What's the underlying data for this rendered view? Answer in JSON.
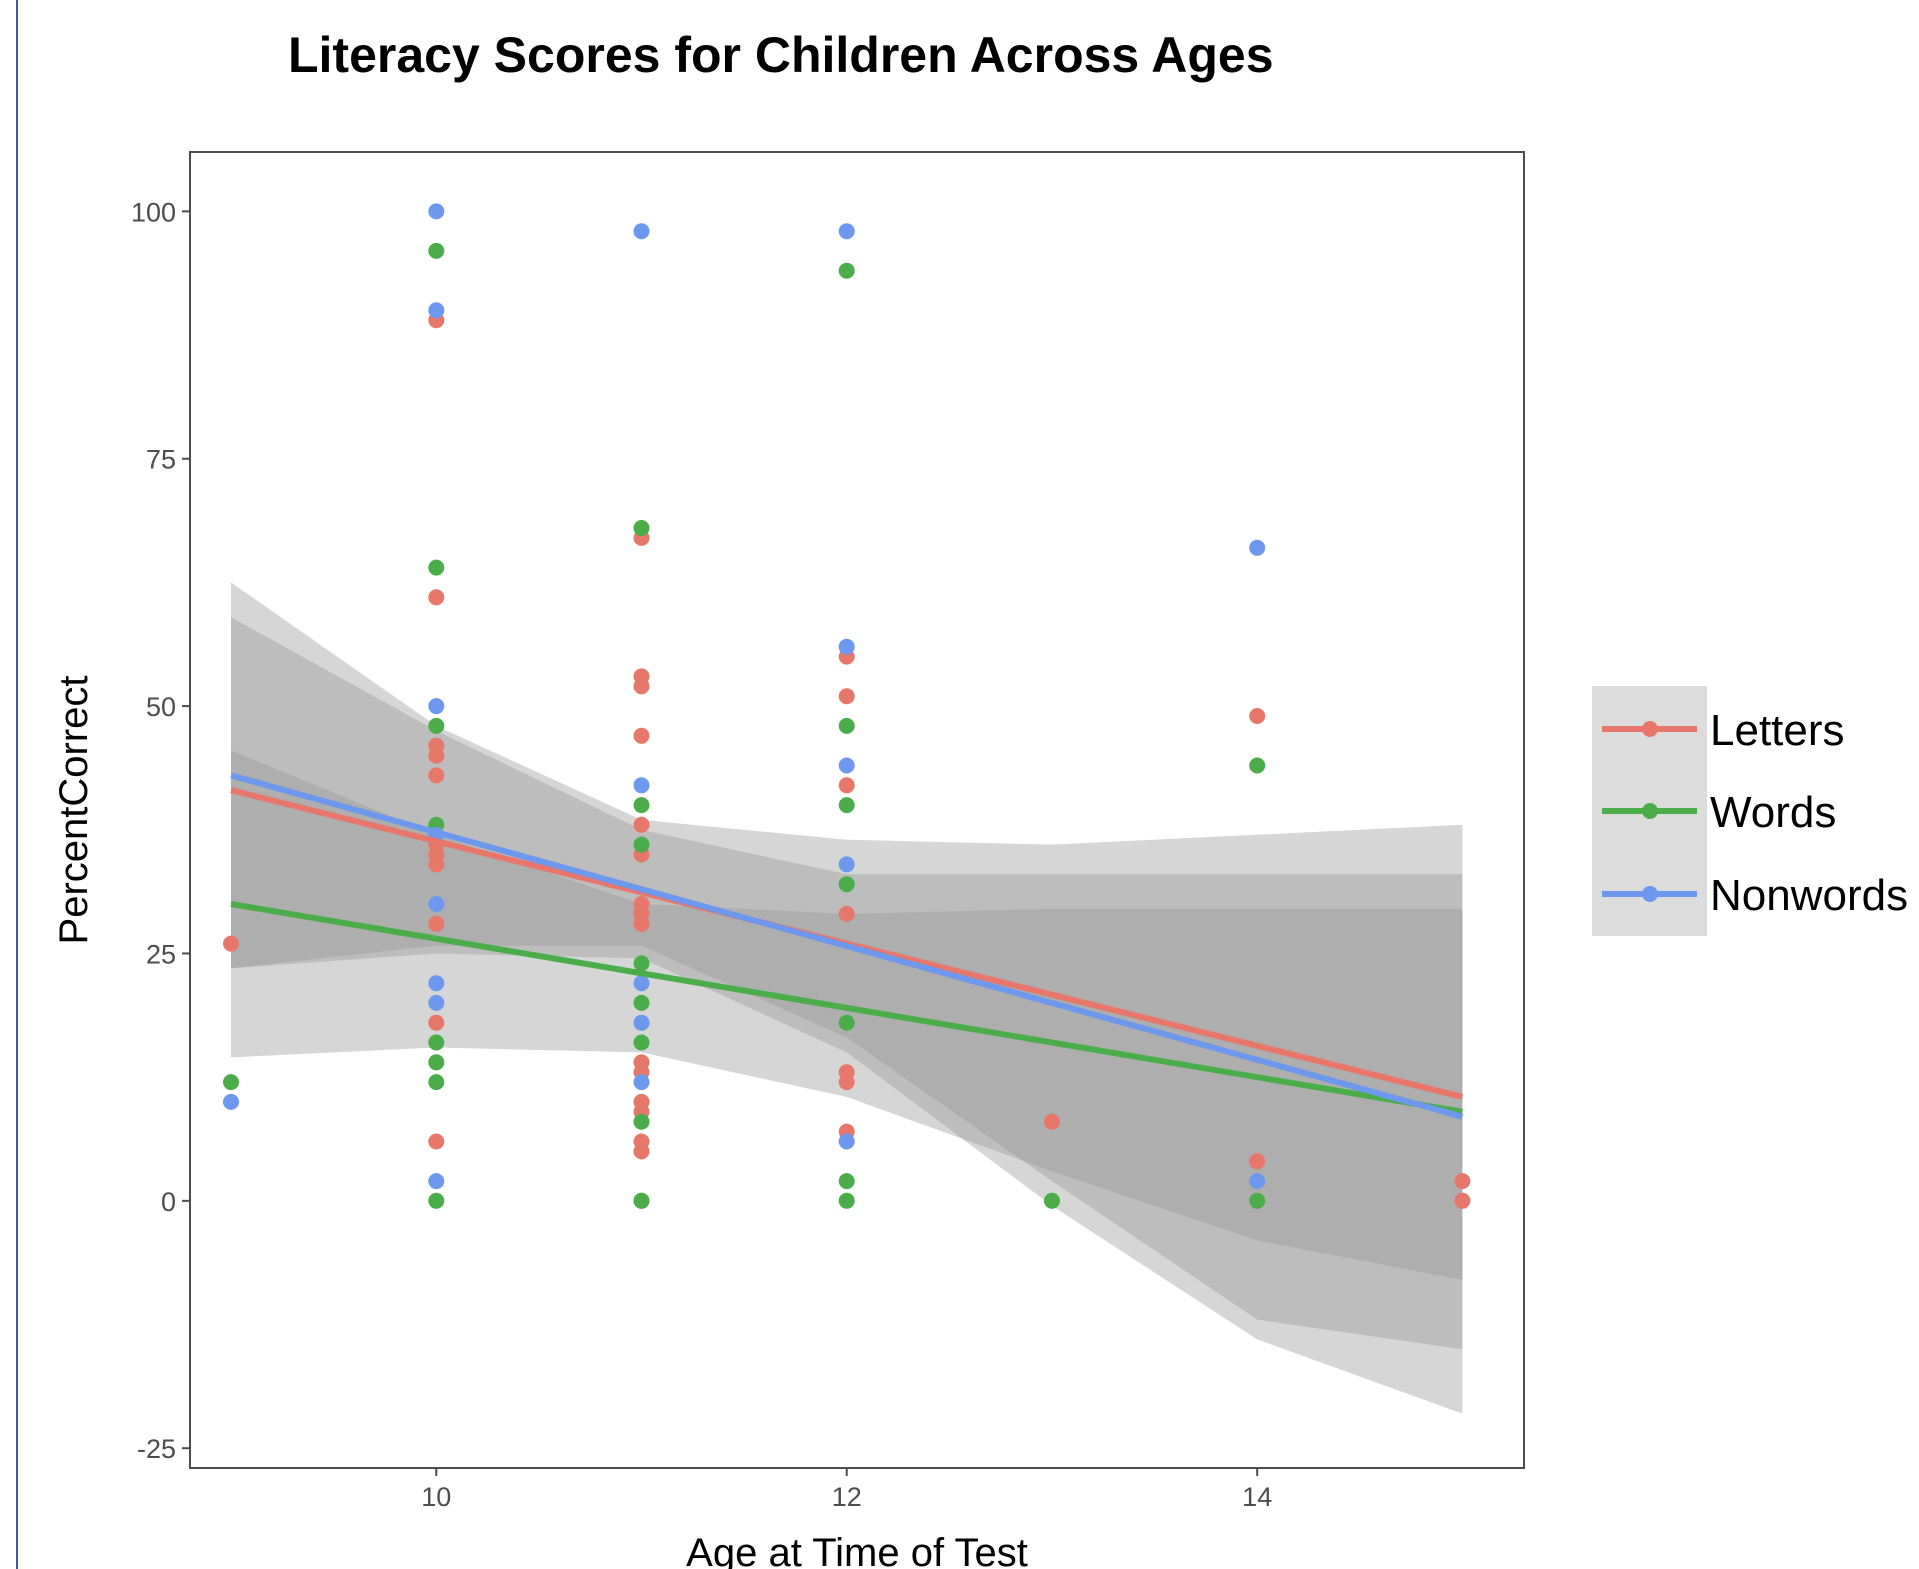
{
  "chart_data": {
    "type": "scatter",
    "title": "Literacy Scores for Children Across Ages",
    "xlabel": "Age at Time of Test",
    "ylabel": "PercentCorrect",
    "xlim": [
      8.8,
      15.3
    ],
    "ylim": [
      -27,
      106
    ],
    "xticks": [
      10,
      12,
      14
    ],
    "yticks": [
      -25,
      0,
      25,
      50,
      75,
      100
    ],
    "x_tick_labels": [
      "10",
      "12",
      "14"
    ],
    "y_tick_labels": [
      "-25",
      "0",
      "25",
      "50",
      "75",
      "100"
    ],
    "grid": false,
    "legend_position": "right",
    "series": [
      {
        "name": "Letters",
        "color": "#e7776a",
        "points": [
          [
            9,
            26
          ],
          [
            10,
            89
          ],
          [
            10,
            61
          ],
          [
            10,
            46
          ],
          [
            10,
            45
          ],
          [
            10,
            43
          ],
          [
            10,
            36
          ],
          [
            10,
            35
          ],
          [
            10,
            34
          ],
          [
            10,
            28
          ],
          [
            10,
            18
          ],
          [
            10,
            6
          ],
          [
            11,
            67
          ],
          [
            11,
            53
          ],
          [
            11,
            52
          ],
          [
            11,
            47
          ],
          [
            11,
            38
          ],
          [
            11,
            35
          ],
          [
            11,
            30
          ],
          [
            11,
            29
          ],
          [
            11,
            28
          ],
          [
            11,
            14
          ],
          [
            11,
            13
          ],
          [
            11,
            10
          ],
          [
            11,
            9
          ],
          [
            11,
            6
          ],
          [
            11,
            5
          ],
          [
            11,
            0
          ],
          [
            12,
            55
          ],
          [
            12,
            51
          ],
          [
            12,
            42
          ],
          [
            12,
            29
          ],
          [
            12,
            13
          ],
          [
            12,
            12
          ],
          [
            12,
            7
          ],
          [
            13,
            8
          ],
          [
            14,
            49
          ],
          [
            14,
            4
          ],
          [
            15,
            2
          ],
          [
            15,
            0
          ]
        ],
        "fit": {
          "x": [
            9,
            15
          ],
          "y": [
            41.5,
            10.5
          ]
        },
        "band": {
          "x": [
            9,
            10,
            11,
            12,
            13,
            14,
            15
          ],
          "lower": [
            23.5,
            25.8,
            25.8,
            16.5,
            2.0,
            -12.0,
            -15.0
          ],
          "upper": [
            59.0,
            47.5,
            37.5,
            33.0,
            33.0,
            33.0,
            33.0
          ]
        }
      },
      {
        "name": "Words",
        "color": "#4aad4a",
        "points": [
          [
            9,
            12
          ],
          [
            10,
            96
          ],
          [
            10,
            64
          ],
          [
            10,
            48
          ],
          [
            10,
            38
          ],
          [
            10,
            16
          ],
          [
            10,
            14
          ],
          [
            10,
            12
          ],
          [
            10,
            0
          ],
          [
            11,
            68
          ],
          [
            11,
            40
          ],
          [
            11,
            36
          ],
          [
            11,
            24
          ],
          [
            11,
            20
          ],
          [
            11,
            16
          ],
          [
            11,
            8
          ],
          [
            11,
            0
          ],
          [
            12,
            94
          ],
          [
            12,
            48
          ],
          [
            12,
            40
          ],
          [
            12,
            32
          ],
          [
            12,
            18
          ],
          [
            12,
            2
          ],
          [
            12,
            0
          ],
          [
            13,
            0
          ],
          [
            14,
            44
          ],
          [
            14,
            0
          ]
        ],
        "fit": {
          "x": [
            9,
            15
          ],
          "y": [
            30.0,
            9.0
          ]
        },
        "band": {
          "x": [
            9,
            10,
            11,
            12,
            13,
            14,
            15
          ],
          "lower": [
            14.5,
            15.5,
            15.0,
            10.5,
            3.0,
            -4.0,
            -8.0
          ],
          "upper": [
            45.5,
            37.0,
            30.0,
            29.0,
            29.5,
            29.5,
            29.5
          ]
        }
      },
      {
        "name": "Nonwords",
        "color": "#6d98ee",
        "points": [
          [
            9,
            10
          ],
          [
            10,
            100
          ],
          [
            10,
            90
          ],
          [
            10,
            50
          ],
          [
            10,
            37
          ],
          [
            10,
            30
          ],
          [
            10,
            22
          ],
          [
            10,
            20
          ],
          [
            10,
            2
          ],
          [
            11,
            98
          ],
          [
            11,
            42
          ],
          [
            11,
            22
          ],
          [
            11,
            18
          ],
          [
            11,
            12
          ],
          [
            12,
            98
          ],
          [
            12,
            56
          ],
          [
            12,
            44
          ],
          [
            12,
            34
          ],
          [
            12,
            6
          ],
          [
            14,
            66
          ],
          [
            14,
            2
          ]
        ],
        "fit": {
          "x": [
            9,
            15
          ],
          "y": [
            43.0,
            8.5
          ]
        },
        "band": {
          "x": [
            9,
            10,
            11,
            12,
            13,
            14,
            15
          ],
          "lower": [
            23.5,
            25.0,
            24.5,
            15.0,
            -0.5,
            -14.0,
            -21.5
          ],
          "upper": [
            62.5,
            48.0,
            38.5,
            36.5,
            36.0,
            37.0,
            38.0
          ]
        }
      }
    ]
  }
}
